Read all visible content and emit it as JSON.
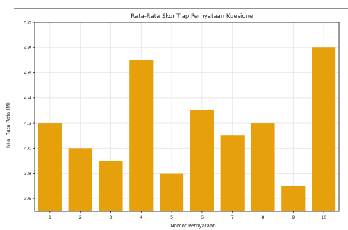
{
  "chart_data": {
    "type": "bar",
    "title": "Rata-Rata Skor Tiap Pernyataan Kuesioner",
    "xlabel": "Nomor Pernyataan",
    "ylabel": "Nilai Rata-Rata (M)",
    "categories": [
      "1",
      "2",
      "3",
      "4",
      "5",
      "6",
      "7",
      "8",
      "9",
      "10"
    ],
    "values": [
      4.2,
      4.0,
      3.9,
      4.7,
      3.8,
      4.3,
      4.1,
      4.2,
      3.7,
      4.8
    ],
    "ylim": [
      3.5,
      5.0
    ],
    "yticks": [
      "3.6",
      "3.8",
      "4.0",
      "4.2",
      "4.4",
      "4.6",
      "4.8",
      "5.0"
    ],
    "grid": true,
    "bar_color": "#E6A00C"
  }
}
